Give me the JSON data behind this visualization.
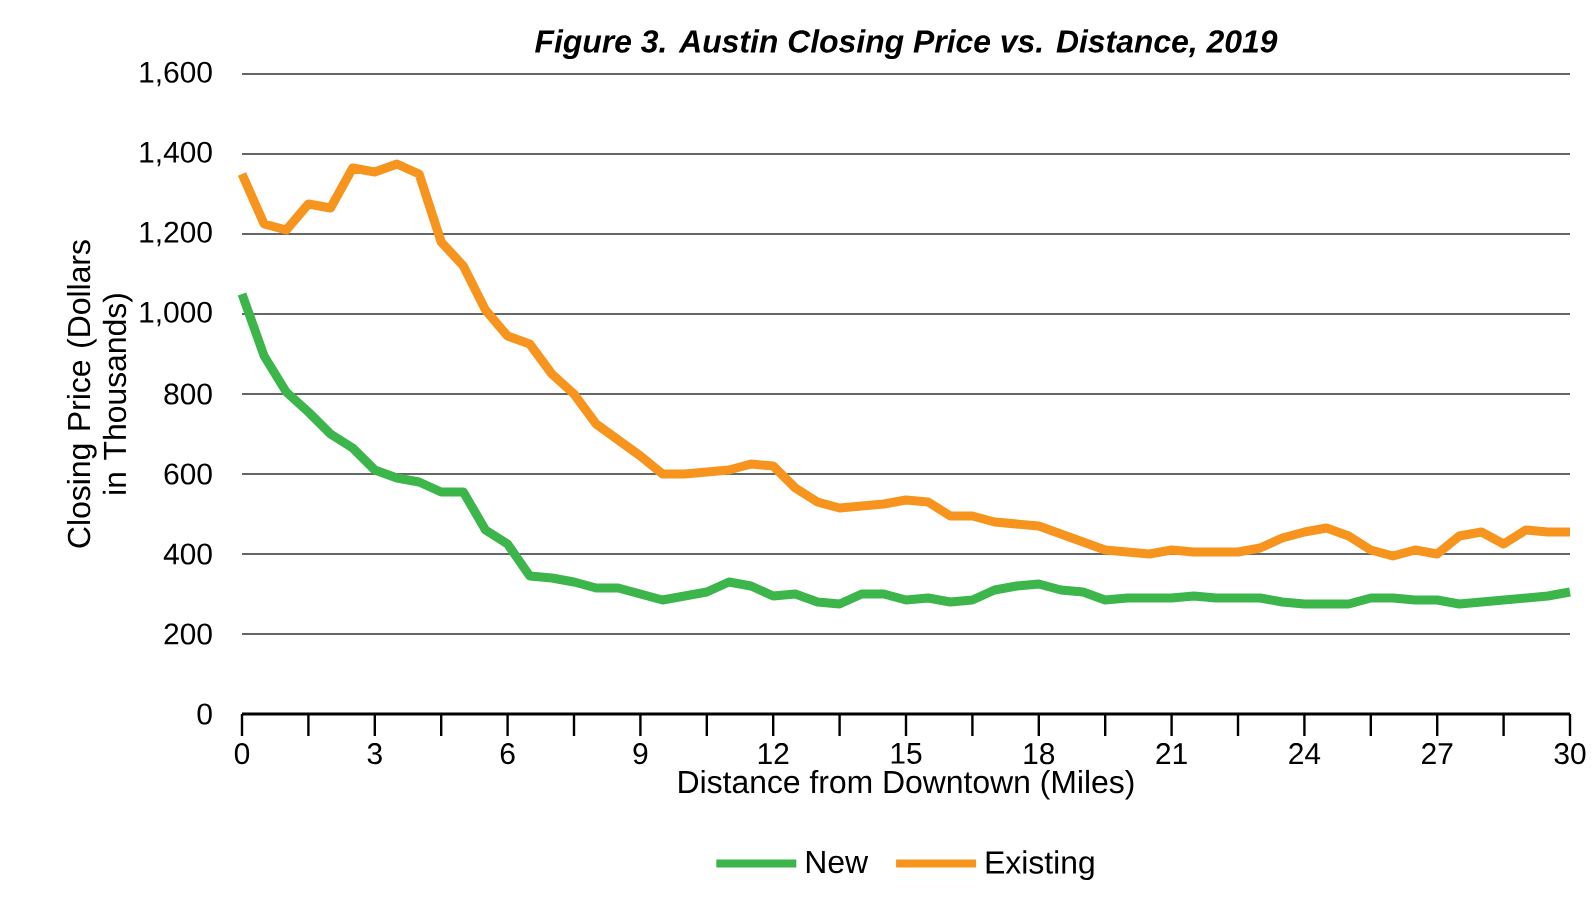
{
  "chart_data": {
    "type": "line",
    "title": "Figure 3. Austin Closing Price vs. Distance, 2019",
    "xlabel": "Distance from Downtown (Miles)",
    "ylabel": "Closing Price (Dollars in Thousands)",
    "x": [
      0,
      0.5,
      1,
      1.5,
      2,
      2.5,
      3,
      3.5,
      4,
      4.5,
      5,
      5.5,
      6,
      6.5,
      7,
      7.5,
      8,
      8.5,
      9,
      9.5,
      10,
      10.5,
      11,
      11.5,
      12,
      12.5,
      13,
      13.5,
      14,
      14.5,
      15,
      15.5,
      16,
      16.5,
      17,
      17.5,
      18,
      18.5,
      19,
      19.5,
      20,
      20.5,
      21,
      21.5,
      22,
      22.5,
      23,
      23.5,
      24,
      24.5,
      25,
      25.5,
      26,
      26.5,
      27,
      27.5,
      28,
      28.5,
      29,
      29.5,
      30
    ],
    "series": [
      {
        "name": "New",
        "color": "#3cb54a",
        "values": [
          1050,
          895,
          805,
          755,
          700,
          665,
          610,
          590,
          580,
          555,
          555,
          460,
          425,
          345,
          340,
          330,
          315,
          315,
          300,
          285,
          295,
          305,
          330,
          320,
          295,
          300,
          280,
          275,
          300,
          300,
          285,
          290,
          280,
          285,
          310,
          320,
          325,
          310,
          305,
          285,
          290,
          290,
          290,
          295,
          290,
          290,
          290,
          280,
          275,
          275,
          275,
          290,
          290,
          285,
          285,
          275,
          280,
          285,
          290,
          295,
          305
        ]
      },
      {
        "name": "Existing",
        "color": "#f7941d",
        "values": [
          1350,
          1225,
          1210,
          1275,
          1265,
          1365,
          1355,
          1375,
          1350,
          1180,
          1120,
          1010,
          945,
          925,
          850,
          800,
          725,
          685,
          645,
          600,
          600,
          605,
          610,
          625,
          620,
          565,
          530,
          515,
          520,
          525,
          535,
          530,
          495,
          495,
          480,
          475,
          470,
          450,
          430,
          410,
          405,
          400,
          410,
          405,
          405,
          405,
          415,
          440,
          455,
          465,
          445,
          410,
          395,
          410,
          400,
          445,
          455,
          425,
          460,
          455,
          455
        ]
      }
    ],
    "xlim": [
      0,
      30
    ],
    "ylim": [
      0,
      1600
    ],
    "xticks": [
      0,
      {
        "value": 1.5,
        "label": null
      },
      3,
      {
        "value": 4.5,
        "label": null
      },
      6,
      {
        "value": 7.5,
        "label": null
      },
      9,
      {
        "value": 10.5,
        "label": null
      },
      12,
      {
        "value": 13.5,
        "label": null
      },
      15,
      {
        "value": 16.5,
        "label": null
      },
      18,
      {
        "value": 19.5,
        "label": null
      },
      21,
      {
        "value": 22.5,
        "label": null
      },
      24,
      {
        "value": 25.5,
        "label": null
      },
      27,
      {
        "value": 28.5,
        "label": null
      },
      30
    ],
    "yticks": [
      0,
      {
        "value": 200,
        "label": "200"
      },
      {
        "value": 400,
        "label": "400"
      },
      {
        "value": 600,
        "label": "600"
      },
      {
        "value": 800,
        "label": "800"
      },
      {
        "value": 1000,
        "label": "1,000"
      },
      {
        "value": 1200,
        "label": "1,200"
      },
      {
        "value": 1400,
        "label": "1,400"
      },
      {
        "value": 1600,
        "label": "1,600"
      }
    ],
    "grid": "y",
    "legend": "bottom",
    "marker": "none",
    "line_style": "solid"
  }
}
